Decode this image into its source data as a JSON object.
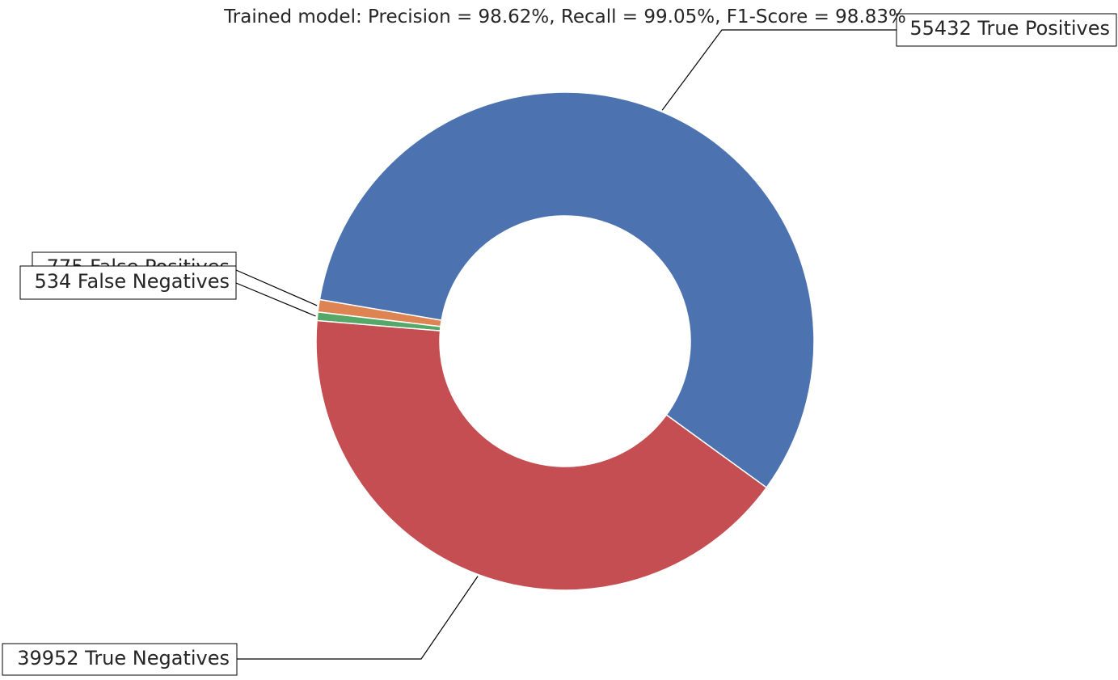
{
  "chart_data": {
    "type": "pie",
    "variant": "donut",
    "title": "Trained model: Precision = 98.62%, Recall = 99.05%, F1-Score = 98.83%",
    "slices": [
      {
        "label": "55432 True Positives",
        "category": "True Positives",
        "value": 55432,
        "color": "#4c72b0"
      },
      {
        "label": "775 False Positives",
        "category": "False Positives",
        "value": 775,
        "color": "#dd8452"
      },
      {
        "label": "534 False Negatives",
        "category": "False Negatives",
        "value": 534,
        "color": "#55a868"
      },
      {
        "label": "39952 True Negatives",
        "category": "True Negatives",
        "value": 39952,
        "color": "#c44e52"
      }
    ],
    "start_angle_deg": -36,
    "direction": "counterclockwise",
    "legend": "none",
    "grid": false
  }
}
